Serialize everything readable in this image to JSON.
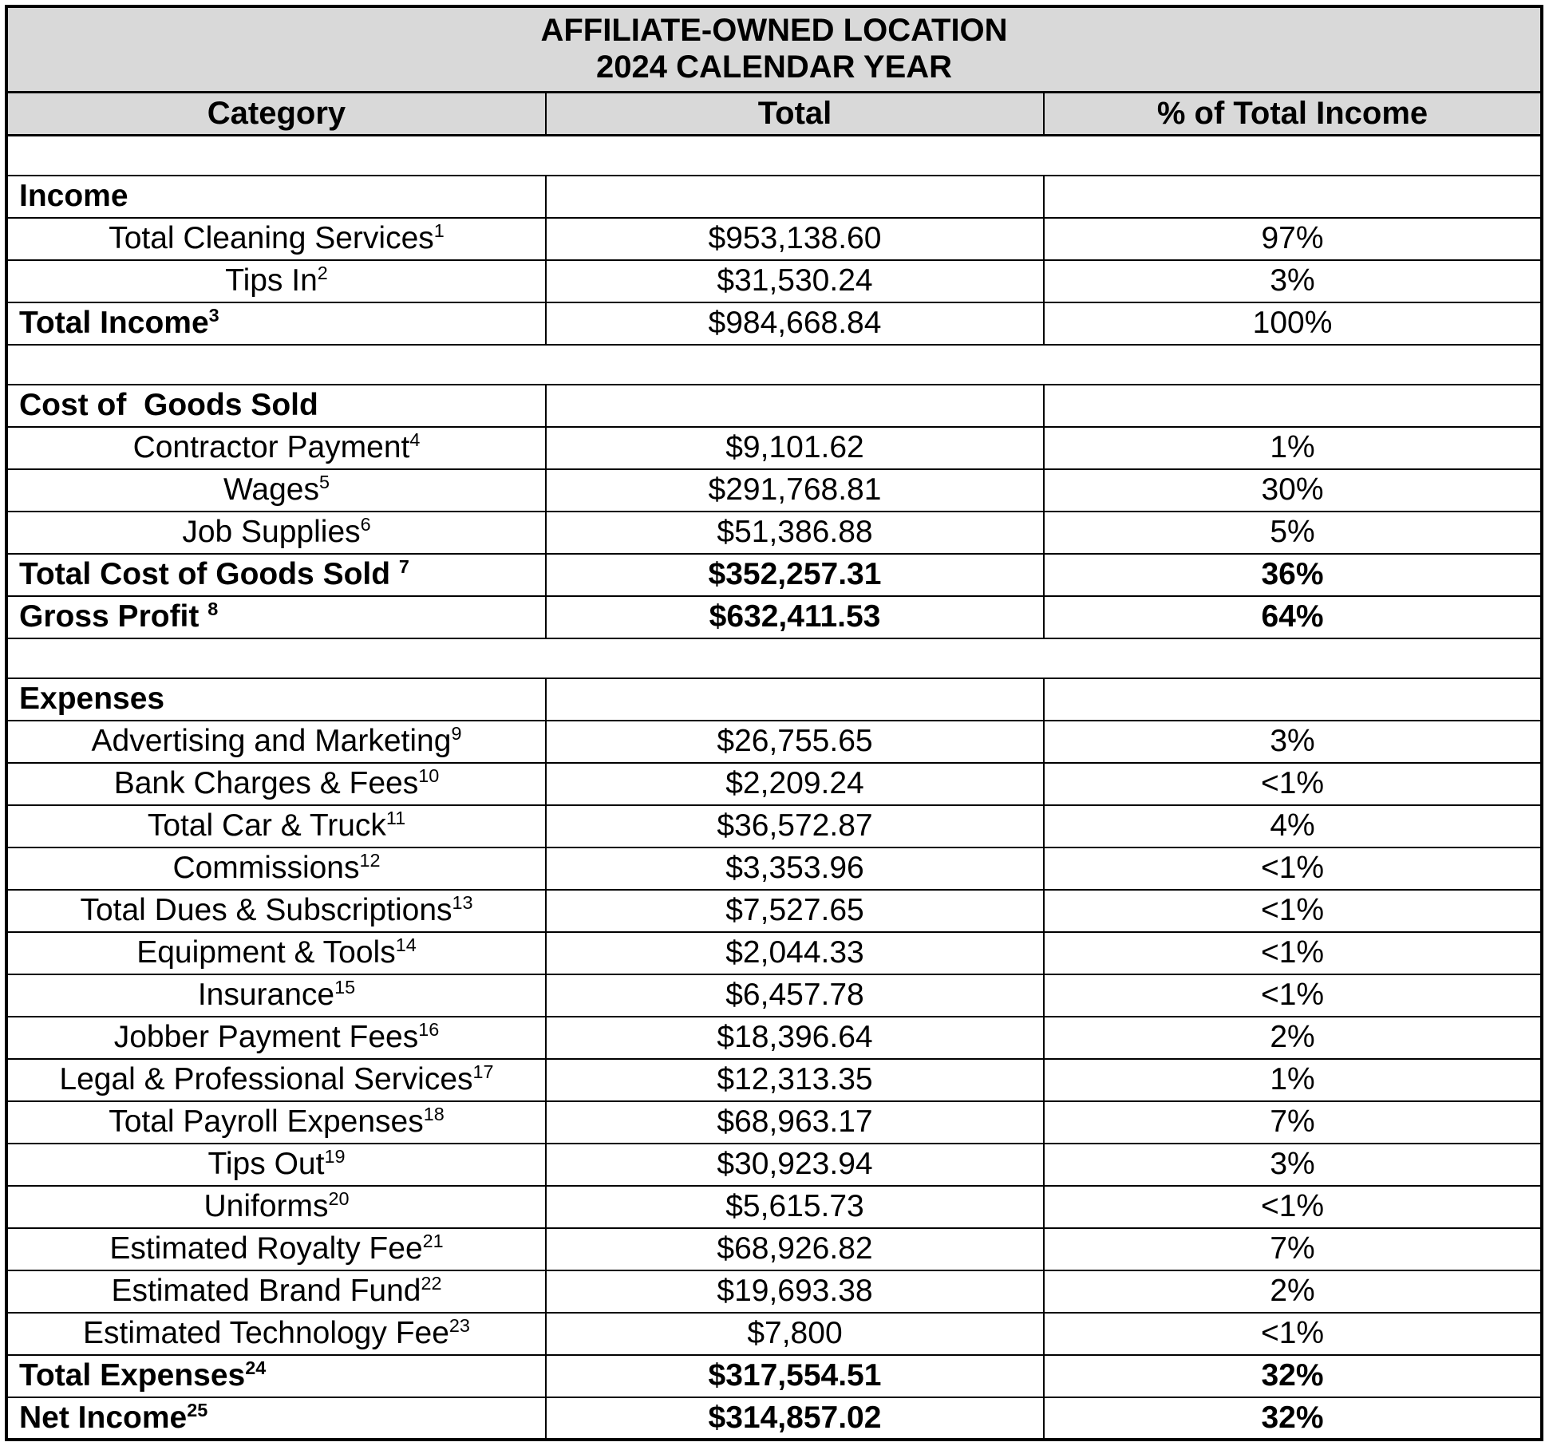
{
  "title": {
    "line1": "AFFILIATE-OWNED LOCATION",
    "line2": "2024 CALENDAR YEAR"
  },
  "columns": [
    "Category",
    "Total",
    "% of Total Income"
  ],
  "colors": {
    "header_bg": "#d9d9d9",
    "border": "#000000",
    "row_bg": "#ffffff",
    "text": "#000000"
  },
  "rows": [
    {
      "type": "blank"
    },
    {
      "type": "section",
      "label": "Income"
    },
    {
      "type": "data",
      "label": "Total Cleaning Services",
      "sup": "1",
      "total": "$953,138.60",
      "pct": "97%"
    },
    {
      "type": "data",
      "label": "Tips In",
      "sup": "2",
      "total": "$31,530.24",
      "pct": "3%"
    },
    {
      "type": "total",
      "label": "Total Income",
      "sup": "3",
      "total": "$984,668.84",
      "pct": "100%",
      "bold_values": false
    },
    {
      "type": "blank"
    },
    {
      "type": "section",
      "label": "Cost of  Goods Sold"
    },
    {
      "type": "data",
      "label": "Contractor Payment",
      "sup": "4",
      "total": "$9,101.62",
      "pct": "1%"
    },
    {
      "type": "data",
      "label": "Wages",
      "sup": "5",
      "total": "$291,768.81",
      "pct": "30%"
    },
    {
      "type": "data",
      "label": "Job Supplies",
      "sup": "6",
      "total": "$51,386.88",
      "pct": "5%"
    },
    {
      "type": "total",
      "label": "Total Cost of Goods Sold ",
      "sup": "7",
      "total": "$352,257.31",
      "pct": "36%",
      "bold_values": true
    },
    {
      "type": "total",
      "label": "Gross Profit ",
      "sup": "8",
      "total": "$632,411.53",
      "pct": "64%",
      "bold_values": true
    },
    {
      "type": "blank"
    },
    {
      "type": "section",
      "label": "Expenses"
    },
    {
      "type": "data",
      "label": "Advertising and Marketing",
      "sup": "9",
      "total": "$26,755.65",
      "pct": "3%"
    },
    {
      "type": "data",
      "label": "Bank Charges & Fees",
      "sup": "10",
      "total": "$2,209.24",
      "pct": "<1%"
    },
    {
      "type": "data",
      "label": "Total Car & Truck",
      "sup": "11",
      "total": "$36,572.87",
      "pct": "4%"
    },
    {
      "type": "data",
      "label": "Commissions",
      "sup": "12",
      "total": "$3,353.96",
      "pct": "<1%"
    },
    {
      "type": "data",
      "label": "Total Dues & Subscriptions",
      "sup": "13",
      "total": "$7,527.65",
      "pct": "<1%"
    },
    {
      "type": "data",
      "label": "Equipment & Tools",
      "sup": "14",
      "total": "$2,044.33",
      "pct": "<1%"
    },
    {
      "type": "data",
      "label": "Insurance",
      "sup": "15",
      "total": "$6,457.78",
      "pct": "<1%"
    },
    {
      "type": "data",
      "label": "Jobber Payment Fees",
      "sup": "16",
      "total": "$18,396.64",
      "pct": "2%"
    },
    {
      "type": "data",
      "label": "Legal & Professional Services",
      "sup": "17",
      "total": "$12,313.35",
      "pct": "1%"
    },
    {
      "type": "data",
      "label": "Total Payroll Expenses",
      "sup": "18",
      "total": "$68,963.17",
      "pct": "7%"
    },
    {
      "type": "data",
      "label": "Tips Out",
      "sup": "19",
      "total": "$30,923.94",
      "pct": "3%"
    },
    {
      "type": "data",
      "label": "Uniforms",
      "sup": "20",
      "total": "$5,615.73",
      "pct": "<1%"
    },
    {
      "type": "data",
      "label": "Estimated Royalty Fee",
      "sup": "21",
      "total": "$68,926.82",
      "pct": "7%"
    },
    {
      "type": "data",
      "label": "Estimated Brand Fund",
      "sup": "22",
      "total": "$19,693.38",
      "pct": "2%"
    },
    {
      "type": "data",
      "label": "Estimated Technology Fee",
      "sup": "23",
      "total": "$7,800",
      "pct": "<1%"
    },
    {
      "type": "total",
      "label": "Total Expenses",
      "sup": "24",
      "total": "$317,554.51",
      "pct": "32%",
      "bold_values": true
    },
    {
      "type": "total",
      "label": "Net Income",
      "sup": "25",
      "total": "$314,857.02",
      "pct": "32%",
      "bold_values": true
    }
  ]
}
